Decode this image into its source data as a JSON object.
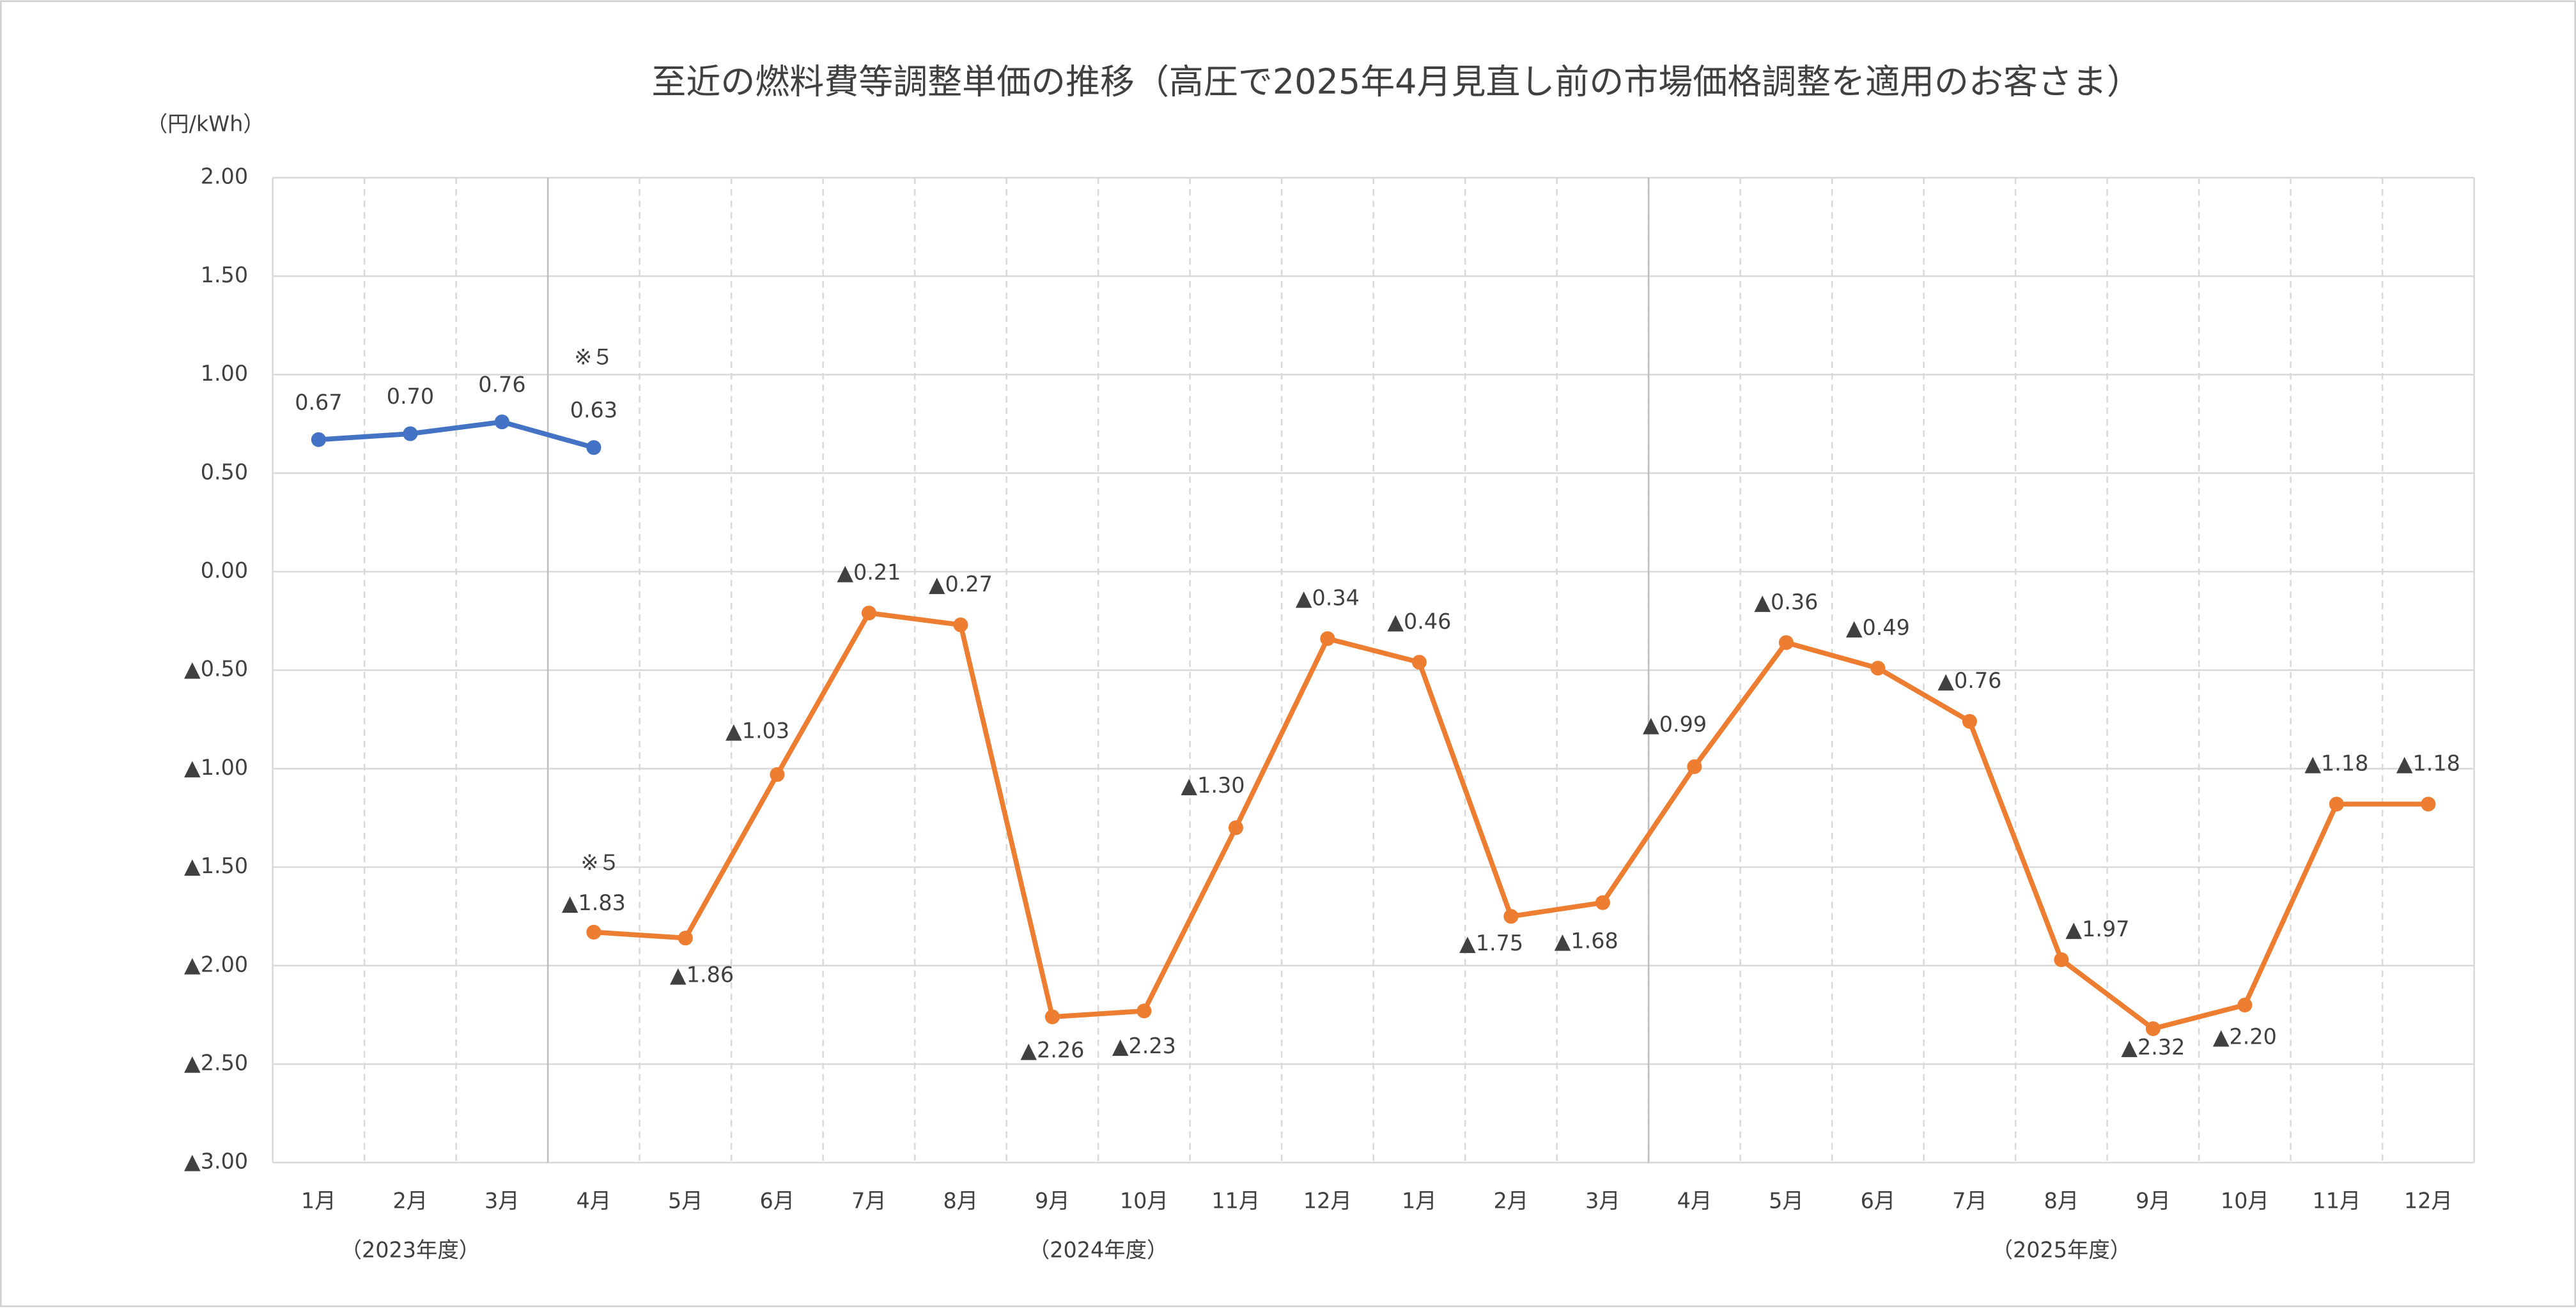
{
  "chart_data": {
    "type": "line",
    "title": "至近の燃料費等調整単価の推移（高圧で2025年4月見直し前の市場価格調整を適用のお客さま）",
    "y_axis_label": "（円/kWh）",
    "categories": [
      "1月",
      "2月",
      "3月",
      "4月",
      "5月",
      "6月",
      "7月",
      "8月",
      "9月",
      "10月",
      "11月",
      "12月",
      "1月",
      "2月",
      "3月",
      "4月",
      "5月",
      "6月",
      "7月",
      "8月",
      "9月",
      "10月",
      "11月",
      "12月"
    ],
    "periods": [
      "（2023年度）",
      "（2024年度）",
      "（2025年度）"
    ],
    "annotations": [
      "※５",
      "※５"
    ],
    "ylim": [
      -3,
      2
    ],
    "yticks": [
      {
        "value": 2,
        "label": "2.00"
      },
      {
        "value": 1.5,
        "label": "1.50"
      },
      {
        "value": 1,
        "label": "1.00"
      },
      {
        "value": 0.5,
        "label": "0.50"
      },
      {
        "value": 0,
        "label": "0.00"
      },
      {
        "value": -0.5,
        "label": "▲0.50"
      },
      {
        "value": -1,
        "label": "▲1.00"
      },
      {
        "value": -1.5,
        "label": "▲1.50"
      },
      {
        "value": -2,
        "label": "▲2.00"
      },
      {
        "value": -2.5,
        "label": "▲2.50"
      },
      {
        "value": -3,
        "label": "▲3.00"
      }
    ],
    "grid": true,
    "series": [
      {
        "color": "#4472c4",
        "values": [
          0.67,
          0.7,
          0.76,
          0.63,
          null,
          null,
          null,
          null,
          null,
          null,
          null,
          null,
          null,
          null,
          null,
          null,
          null,
          null,
          null,
          null,
          null,
          null,
          null,
          null
        ],
        "value_labels": [
          "0.67",
          "0.70",
          "0.76",
          "0.63",
          null,
          null,
          null,
          null,
          null,
          null,
          null,
          null,
          null,
          null,
          null,
          null,
          null,
          null,
          null,
          null,
          null,
          null,
          null,
          null
        ]
      },
      {
        "color": "#ed7d31",
        "values": [
          null,
          null,
          null,
          -1.83,
          -1.86,
          -1.03,
          -0.21,
          -0.27,
          -2.26,
          -2.23,
          -1.3,
          -0.34,
          -0.46,
          -1.75,
          -1.68,
          -0.99,
          -0.36,
          -0.49,
          -0.76,
          -1.97,
          -2.32,
          -2.2,
          -1.18,
          -1.18
        ],
        "value_labels": [
          null,
          null,
          null,
          "▲1.83",
          "▲1.86",
          "▲1.03",
          "▲0.21",
          "▲0.27",
          "▲2.26",
          "▲2.23",
          "▲1.30",
          "▲0.34",
          "▲0.46",
          "▲1.75",
          "▲1.68",
          "▲0.99",
          "▲0.36",
          "▲0.49",
          "▲0.76",
          "▲1.97",
          "▲2.32",
          "▲2.20",
          "▲1.18",
          "▲1.18"
        ]
      }
    ]
  }
}
